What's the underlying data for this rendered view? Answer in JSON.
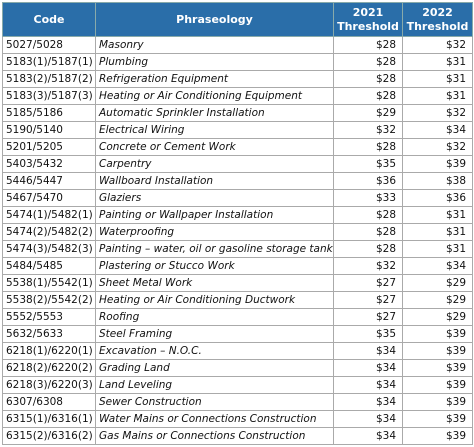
{
  "table": {
    "header": [
      "Code",
      "Phraseology",
      "2021 Threshold",
      "2022 Threshold"
    ],
    "rows": [
      [
        "5027/5028",
        "Masonry",
        "$28",
        "$32"
      ],
      [
        "5183(1)/5187(1)",
        "Plumbing",
        "$28",
        "$31"
      ],
      [
        "5183(2)/5187(2)",
        "Refrigeration Equipment",
        "$28",
        "$31"
      ],
      [
        "5183(3)/5187(3)",
        "Heating or Air Conditioning Equipment",
        "$28",
        "$31"
      ],
      [
        "5185/5186",
        "Automatic Sprinkler Installation",
        "$29",
        "$32"
      ],
      [
        "5190/5140",
        "Electrical Wiring",
        "$32",
        "$34"
      ],
      [
        "5201/5205",
        "Concrete or Cement Work",
        "$28",
        "$32"
      ],
      [
        "5403/5432",
        "Carpentry",
        "$35",
        "$39"
      ],
      [
        "5446/5447",
        "Wallboard Installation",
        "$36",
        "$38"
      ],
      [
        "5467/5470",
        "Glaziers",
        "$33",
        "$36"
      ],
      [
        "5474(1)/5482(1)",
        "Painting or Wallpaper Installation",
        "$28",
        "$31"
      ],
      [
        "5474(2)/5482(2)",
        "Waterproofing",
        "$28",
        "$31"
      ],
      [
        "5474(3)/5482(3)",
        "Painting – water, oil or gasoline storage tanks",
        "$28",
        "$31"
      ],
      [
        "5484/5485",
        "Plastering or Stucco Work",
        "$32",
        "$34"
      ],
      [
        "5538(1)/5542(1)",
        "Sheet Metal Work",
        "$27",
        "$29"
      ],
      [
        "5538(2)/5542(2)",
        "Heating or Air Conditioning Ductwork",
        "$27",
        "$29"
      ],
      [
        "5552/5553",
        "Roofing",
        "$27",
        "$29"
      ],
      [
        "5632/5633",
        "Steel Framing",
        "$35",
        "$39"
      ],
      [
        "6218(1)/6220(1)",
        "Excavation – N.O.C.",
        "$34",
        "$39"
      ],
      [
        "6218(2)/6220(2)",
        "Grading Land",
        "$34",
        "$39"
      ],
      [
        "6218(3)/6220(3)",
        "Land Leveling",
        "$34",
        "$39"
      ],
      [
        "6307/6308",
        "Sewer Construction",
        "$34",
        "$39"
      ],
      [
        "6315(1)/6316(1)",
        "Water Mains or Connections Construction",
        "$34",
        "$39"
      ],
      [
        "6315(2)/6316(2)",
        "Gas Mains or Connections Construction",
        "$34",
        "$39"
      ]
    ]
  }
}
